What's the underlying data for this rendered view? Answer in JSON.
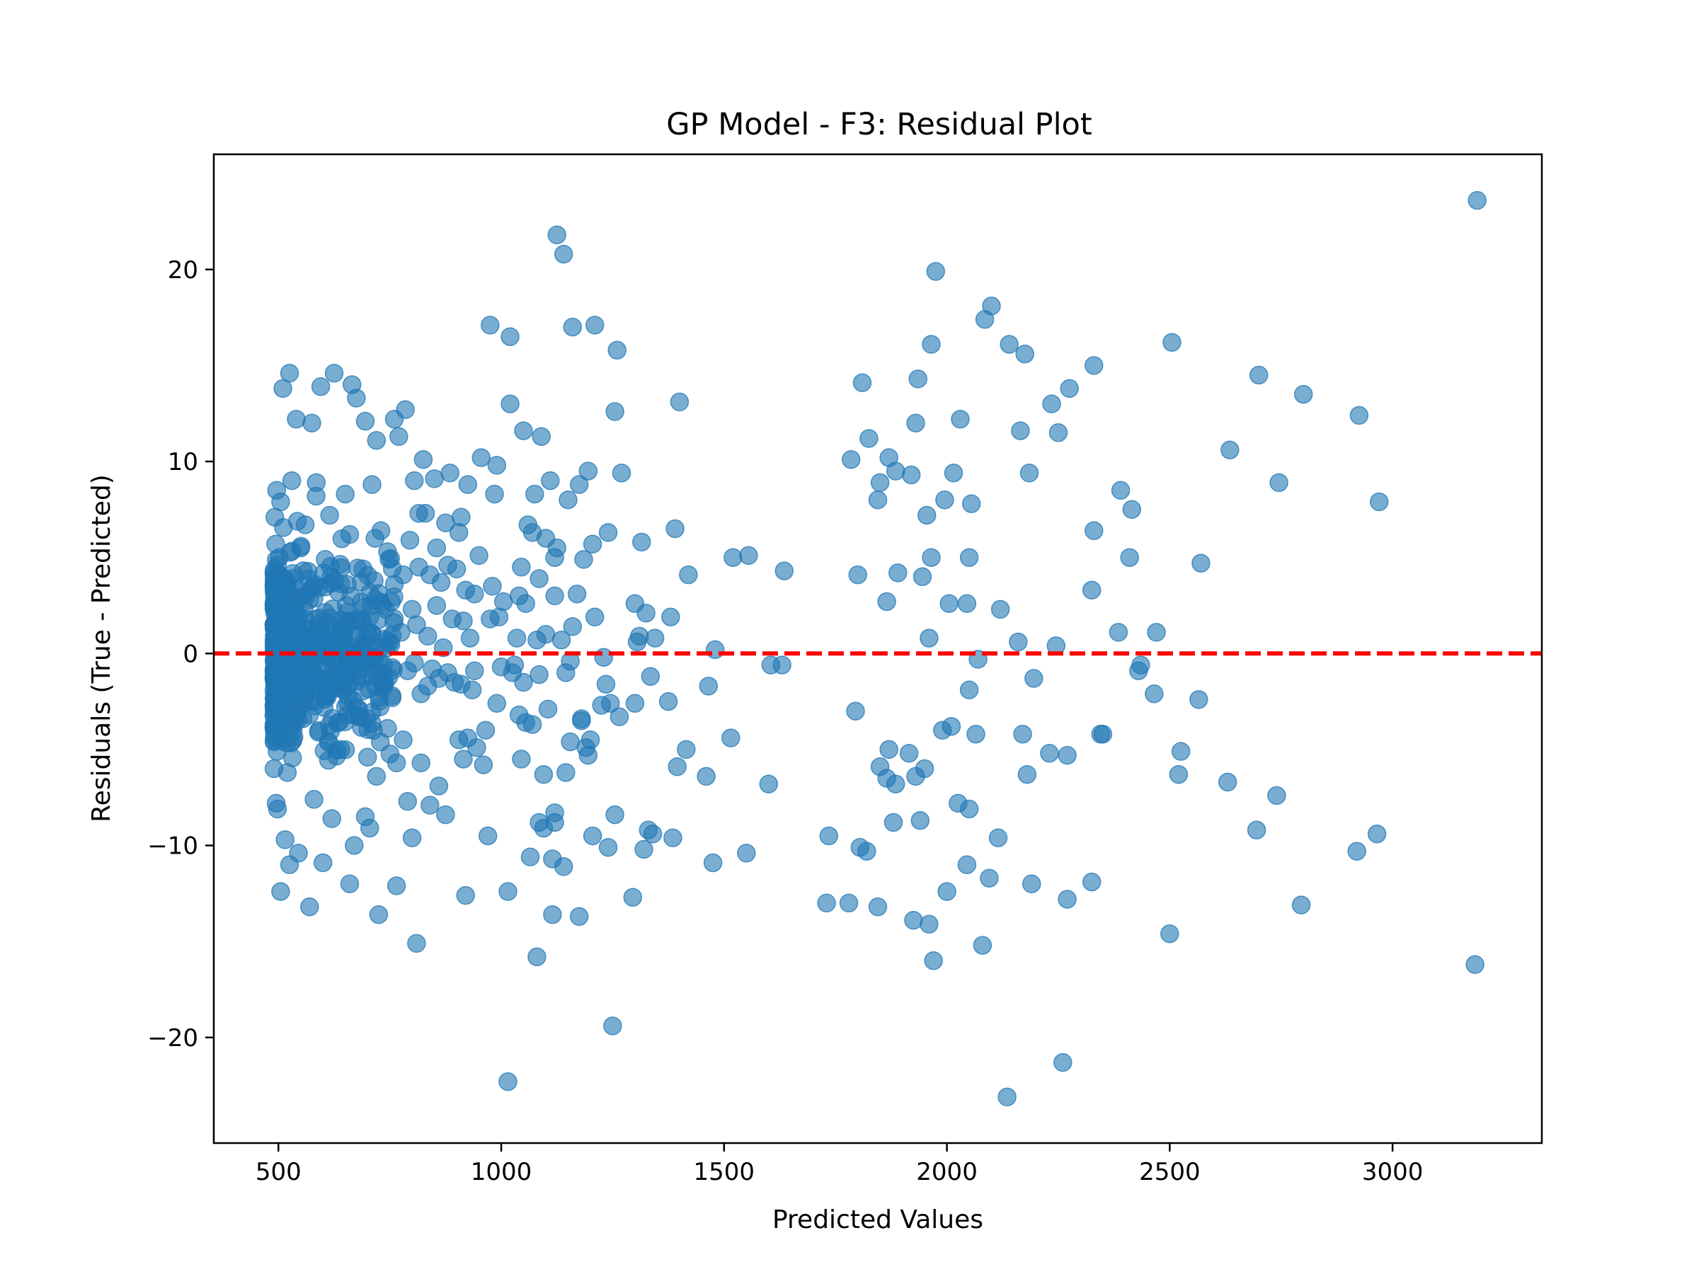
{
  "chart_data": {
    "type": "scatter",
    "title": "GP Model - F3: Residual Plot",
    "xlabel": "Predicted Values",
    "ylabel": "Residuals (True - Predicted)",
    "xlim": [
      355,
      3335
    ],
    "ylim": [
      -25.5,
      26
    ],
    "xticks": [
      500,
      1000,
      1500,
      2000,
      2500,
      3000
    ],
    "xtick_labels": [
      "500",
      "1000",
      "1500",
      "2000",
      "2500",
      "3000"
    ],
    "yticks": [
      -20,
      -10,
      0,
      10,
      20
    ],
    "ytick_labels": [
      "−20",
      "−10",
      "0",
      "10",
      "20"
    ],
    "grid": false,
    "reference_line": {
      "y": 0,
      "color": "#ff0000",
      "style": "dashed"
    },
    "marker_color": "#1f77b4",
    "marker_alpha": 0.6,
    "points": [
      [
        3190,
        23.6
      ],
      [
        3185,
        -16.2
      ],
      [
        2970,
        7.9
      ],
      [
        2965,
        -9.4
      ],
      [
        2925,
        12.4
      ],
      [
        2920,
        -10.3
      ],
      [
        2800,
        13.5
      ],
      [
        2795,
        -13.1
      ],
      [
        2745,
        8.9
      ],
      [
        2740,
        -7.4
      ],
      [
        2700,
        14.5
      ],
      [
        2695,
        -9.2
      ],
      [
        2635,
        10.6
      ],
      [
        2630,
        -6.7
      ],
      [
        2570,
        4.7
      ],
      [
        2565,
        -2.4
      ],
      [
        2505,
        16.2
      ],
      [
        2500,
        -14.6
      ],
      [
        2525,
        -5.1
      ],
      [
        2520,
        -6.3
      ],
      [
        2470,
        1.1
      ],
      [
        2465,
        -2.1
      ],
      [
        2435,
        -0.6
      ],
      [
        2430,
        -0.9
      ],
      [
        2415,
        7.5
      ],
      [
        2410,
        5.0
      ],
      [
        2390,
        8.5
      ],
      [
        2385,
        1.1
      ],
      [
        2350,
        -4.2
      ],
      [
        2345,
        -4.2
      ],
      [
        2330,
        6.4
      ],
      [
        2325,
        3.3
      ],
      [
        2330,
        15.0
      ],
      [
        2325,
        -11.9
      ],
      [
        2275,
        13.8
      ],
      [
        2270,
        -5.3
      ],
      [
        2270,
        -12.8
      ],
      [
        2260,
        -21.3
      ],
      [
        2250,
        11.5
      ],
      [
        2245,
        0.4
      ],
      [
        2235,
        13.0
      ],
      [
        2230,
        -5.2
      ],
      [
        2195,
        -1.3
      ],
      [
        2190,
        -12.0
      ],
      [
        2185,
        9.4
      ],
      [
        2180,
        -6.3
      ],
      [
        2175,
        15.6
      ],
      [
        2170,
        -4.2
      ],
      [
        2165,
        11.6
      ],
      [
        2160,
        0.6
      ],
      [
        2140,
        16.1
      ],
      [
        2135,
        -23.1
      ],
      [
        2120,
        2.3
      ],
      [
        2115,
        -9.6
      ],
      [
        2100,
        18.1
      ],
      [
        2095,
        -11.7
      ],
      [
        2085,
        17.4
      ],
      [
        2080,
        -15.2
      ],
      [
        2070,
        -0.3
      ],
      [
        2065,
        -4.2
      ],
      [
        2055,
        7.8
      ],
      [
        2050,
        -1.9
      ],
      [
        2050,
        5.0
      ],
      [
        2045,
        2.6
      ],
      [
        2050,
        -8.1
      ],
      [
        2045,
        -11.0
      ],
      [
        2030,
        12.2
      ],
      [
        2025,
        -7.8
      ],
      [
        2015,
        9.4
      ],
      [
        2010,
        -3.8
      ],
      [
        2005,
        2.6
      ],
      [
        2000,
        -12.4
      ],
      [
        1995,
        8.0
      ],
      [
        1990,
        -4.0
      ],
      [
        1975,
        19.9
      ],
      [
        1970,
        -16.0
      ],
      [
        1965,
        16.1
      ],
      [
        1960,
        0.8
      ],
      [
        1965,
        5.0
      ],
      [
        1960,
        -14.1
      ],
      [
        1955,
        7.2
      ],
      [
        1950,
        -6.0
      ],
      [
        1945,
        4.0
      ],
      [
        1940,
        -8.7
      ],
      [
        1935,
        14.3
      ],
      [
        1930,
        -6.4
      ],
      [
        1930,
        12.0
      ],
      [
        1925,
        -13.9
      ],
      [
        1920,
        9.3
      ],
      [
        1915,
        -5.2
      ],
      [
        1890,
        4.2
      ],
      [
        1885,
        -6.8
      ],
      [
        1885,
        9.5
      ],
      [
        1880,
        -8.8
      ],
      [
        1870,
        10.2
      ],
      [
        1865,
        2.7
      ],
      [
        1870,
        -5.0
      ],
      [
        1865,
        -6.5
      ],
      [
        1850,
        8.9
      ],
      [
        1845,
        8.0
      ],
      [
        1850,
        -5.9
      ],
      [
        1845,
        -13.2
      ],
      [
        1825,
        11.2
      ],
      [
        1820,
        -10.3
      ],
      [
        1810,
        14.1
      ],
      [
        1805,
        -10.1
      ],
      [
        1800,
        4.1
      ],
      [
        1795,
        -3.0
      ],
      [
        1785,
        10.1
      ],
      [
        1780,
        -13.0
      ],
      [
        1735,
        -9.5
      ],
      [
        1730,
        -13.0
      ],
      [
        1635,
        4.3
      ],
      [
        1630,
        -0.6
      ],
      [
        1605,
        -0.6
      ],
      [
        1600,
        -6.8
      ],
      [
        1555,
        5.1
      ],
      [
        1550,
        -10.4
      ],
      [
        1520,
        5.0
      ],
      [
        1515,
        -4.4
      ],
      [
        1480,
        0.2
      ],
      [
        1475,
        -10.9
      ],
      [
        1465,
        -1.7
      ],
      [
        1460,
        -6.4
      ],
      [
        1420,
        4.1
      ],
      [
        1415,
        -5.0
      ],
      [
        1400,
        13.1
      ],
      [
        1395,
        -5.9
      ],
      [
        1390,
        6.5
      ],
      [
        1385,
        -9.6
      ],
      [
        1380,
        1.9
      ],
      [
        1375,
        -2.5
      ],
      [
        1345,
        0.8
      ],
      [
        1340,
        -9.4
      ],
      [
        1335,
        -1.2
      ],
      [
        1330,
        -9.2
      ],
      [
        1325,
        2.1
      ],
      [
        1320,
        -10.2
      ],
      [
        1315,
        5.8
      ],
      [
        1310,
        0.9
      ],
      [
        1305,
        0.6
      ],
      [
        1300,
        -2.6
      ],
      [
        1300,
        2.6
      ],
      [
        1295,
        -12.7
      ],
      [
        1270,
        9.4
      ],
      [
        1265,
        -3.3
      ],
      [
        1260,
        15.8
      ],
      [
        1255,
        -8.4
      ],
      [
        1255,
        12.6
      ],
      [
        1250,
        -19.4
      ],
      [
        1245,
        -2.6
      ],
      [
        1240,
        -10.1
      ],
      [
        1240,
        6.3
      ],
      [
        1235,
        -1.6
      ],
      [
        1230,
        -0.2
      ],
      [
        1225,
        -2.7
      ],
      [
        1210,
        17.1
      ],
      [
        1205,
        -9.5
      ],
      [
        1210,
        1.9
      ],
      [
        1205,
        5.7
      ],
      [
        1200,
        -4.5
      ],
      [
        1195,
        -5.3
      ],
      [
        1195,
        9.5
      ],
      [
        1190,
        -4.9
      ],
      [
        1185,
        4.9
      ],
      [
        1180,
        -3.5
      ],
      [
        1180,
        -3.4
      ],
      [
        1175,
        -13.7
      ],
      [
        1175,
        8.8
      ],
      [
        1170,
        3.1
      ],
      [
        1160,
        17.0
      ],
      [
        1155,
        -4.6
      ],
      [
        1160,
        1.4
      ],
      [
        1155,
        -0.4
      ],
      [
        1150,
        8.0
      ],
      [
        1145,
        -6.2
      ],
      [
        1145,
        -1.0
      ],
      [
        1140,
        -11.1
      ],
      [
        1140,
        20.8
      ],
      [
        1135,
        0.7
      ],
      [
        1125,
        21.8
      ],
      [
        1120,
        -8.3
      ],
      [
        1125,
        5.5
      ],
      [
        1120,
        -8.8
      ],
      [
        1120,
        3.0
      ],
      [
        1115,
        -10.7
      ],
      [
        1120,
        5.0
      ],
      [
        1115,
        -13.6
      ],
      [
        1110,
        9.0
      ],
      [
        1105,
        -2.9
      ],
      [
        1100,
        1.0
      ],
      [
        1095,
        -9.1
      ],
      [
        1100,
        6.0
      ],
      [
        1095,
        -6.3
      ],
      [
        1090,
        11.3
      ],
      [
        1085,
        -1.1
      ],
      [
        1085,
        3.9
      ],
      [
        1080,
        0.7
      ],
      [
        1085,
        -8.8
      ],
      [
        1080,
        -15.8
      ],
      [
        1075,
        8.3
      ],
      [
        1070,
        -3.7
      ],
      [
        1070,
        6.3
      ],
      [
        1065,
        -10.6
      ],
      [
        1060,
        6.7
      ],
      [
        1055,
        -3.6
      ],
      [
        1055,
        2.6
      ],
      [
        1050,
        -1.5
      ],
      [
        1050,
        11.6
      ],
      [
        1045,
        -5.5
      ],
      [
        1045,
        4.5
      ],
      [
        1040,
        -3.2
      ],
      [
        1040,
        3.0
      ],
      [
        1035,
        0.8
      ],
      [
        1030,
        -0.6
      ],
      [
        1025,
        -1.0
      ],
      [
        1020,
        13.0
      ],
      [
        1015,
        -12.4
      ],
      [
        1020,
        16.5
      ],
      [
        1015,
        -22.3
      ],
      [
        1005,
        2.7
      ],
      [
        1000,
        -0.7
      ],
      [
        995,
        1.9
      ],
      [
        990,
        -2.6
      ],
      [
        990,
        9.8
      ],
      [
        985,
        8.3
      ],
      [
        980,
        3.5
      ],
      [
        975,
        1.8
      ],
      [
        975,
        17.1
      ],
      [
        970,
        -9.5
      ],
      [
        965,
        -4.0
      ],
      [
        960,
        -5.8
      ],
      [
        955,
        10.2
      ],
      [
        950,
        5.1
      ],
      [
        945,
        -4.9
      ],
      [
        940,
        -0.9
      ],
      [
        940,
        3.1
      ],
      [
        935,
        -1.9
      ],
      [
        930,
        0.8
      ],
      [
        925,
        -4.4
      ],
      [
        925,
        8.8
      ],
      [
        920,
        3.3
      ],
      [
        920,
        -12.6
      ],
      [
        915,
        -5.5
      ],
      [
        915,
        1.7
      ],
      [
        910,
        -1.6
      ],
      [
        910,
        7.1
      ],
      [
        905,
        6.3
      ],
      [
        905,
        -4.5
      ],
      [
        900,
        4.4
      ],
      [
        895,
        -1.5
      ],
      [
        890,
        1.8
      ],
      [
        885,
        9.4
      ],
      [
        880,
        -1.0
      ],
      [
        880,
        4.6
      ],
      [
        875,
        -8.4
      ],
      [
        875,
        6.8
      ],
      [
        870,
        0.3
      ],
      [
        865,
        3.7
      ],
      [
        860,
        -1.3
      ],
      [
        860,
        -6.9
      ],
      [
        855,
        5.5
      ],
      [
        855,
        2.5
      ],
      [
        850,
        9.1
      ],
      [
        845,
        -0.8
      ],
      [
        840,
        -7.9
      ],
      [
        840,
        4.1
      ],
      [
        835,
        0.9
      ],
      [
        835,
        -1.7
      ],
      [
        830,
        7.3
      ],
      [
        825,
        10.1
      ],
      [
        820,
        -5.7
      ],
      [
        820,
        -2.1
      ],
      [
        815,
        4.5
      ],
      [
        815,
        7.3
      ],
      [
        810,
        -15.1
      ],
      [
        810,
        1.5
      ],
      [
        805,
        -0.5
      ],
      [
        805,
        9.0
      ],
      [
        800,
        -9.6
      ],
      [
        800,
        2.3
      ],
      [
        795,
        5.9
      ],
      [
        790,
        -7.7
      ],
      [
        790,
        -0.9
      ],
      [
        785,
        12.7
      ],
      [
        780,
        4.1
      ],
      [
        780,
        -4.5
      ],
      [
        775,
        1.1
      ],
      [
        770,
        11.3
      ],
      [
        765,
        -5.7
      ],
      [
        765,
        -12.1
      ],
      [
        760,
        3.6
      ],
      [
        760,
        12.2
      ],
      [
        755,
        -2.2
      ],
      [
        750,
        0.6
      ],
      [
        745,
        5.3
      ],
      [
        745,
        -3.9
      ],
      [
        740,
        2.3
      ],
      [
        735,
        -1.6
      ],
      [
        730,
        6.4
      ],
      [
        725,
        -13.6
      ],
      [
        720,
        11.1
      ],
      [
        720,
        -6.4
      ],
      [
        715,
        3.8
      ],
      [
        715,
        -0.3
      ],
      [
        710,
        8.8
      ],
      [
        705,
        -9.1
      ],
      [
        705,
        1.9
      ],
      [
        700,
        -5.4
      ],
      [
        695,
        12.1
      ],
      [
        695,
        -8.5
      ],
      [
        690,
        4.4
      ],
      [
        685,
        0.3
      ],
      [
        680,
        -2.9
      ],
      [
        675,
        13.3
      ],
      [
        670,
        -10.0
      ],
      [
        665,
        14.0
      ],
      [
        660,
        -12.0
      ],
      [
        660,
        6.2
      ],
      [
        655,
        -3.2
      ],
      [
        650,
        8.3
      ],
      [
        645,
        1.0
      ],
      [
        640,
        -5.0
      ],
      [
        635,
        3.2
      ],
      [
        630,
        -0.7
      ],
      [
        625,
        14.6
      ],
      [
        620,
        -8.6
      ],
      [
        615,
        7.2
      ],
      [
        610,
        -2.0
      ],
      [
        605,
        4.9
      ],
      [
        600,
        -10.9
      ],
      [
        600,
        0.8
      ],
      [
        595,
        13.9
      ],
      [
        590,
        -4.1
      ],
      [
        585,
        8.9
      ],
      [
        580,
        -7.6
      ],
      [
        575,
        12.0
      ],
      [
        570,
        -13.2
      ],
      [
        570,
        2.8
      ],
      [
        565,
        -1.5
      ],
      [
        560,
        6.7
      ],
      [
        555,
        -3.4
      ],
      [
        550,
        5.5
      ],
      [
        545,
        -10.4
      ],
      [
        540,
        12.2
      ],
      [
        540,
        1.6
      ],
      [
        535,
        -0.6
      ],
      [
        530,
        9.0
      ],
      [
        525,
        -11.0
      ],
      [
        525,
        14.6
      ],
      [
        520,
        -6.2
      ],
      [
        515,
        3.9
      ],
      [
        515,
        -9.7
      ],
      [
        510,
        13.8
      ],
      [
        505,
        -12.4
      ],
      [
        505,
        7.9
      ],
      [
        500,
        -2.8
      ],
      [
        500,
        0.2
      ],
      [
        498,
        -8.1
      ],
      [
        498,
        4.6
      ],
      [
        497,
        -5.1
      ],
      [
        497,
        2.0
      ],
      [
        496,
        -3.9
      ],
      [
        496,
        8.5
      ],
      [
        495,
        -7.8
      ],
      [
        495,
        1.1
      ],
      [
        494,
        -1.3
      ],
      [
        494,
        5.7
      ],
      [
        493,
        -4.4
      ],
      [
        493,
        3.3
      ],
      [
        492,
        -0.5
      ],
      [
        492,
        7.1
      ],
      [
        491,
        -2.2
      ],
      [
        491,
        0.9
      ],
      [
        490,
        -6.0
      ],
      [
        490,
        4.2
      ]
    ],
    "dense_region": {
      "x_range": [
        490,
        760
      ],
      "y_range": [
        -9.5,
        9.5
      ]
    }
  }
}
